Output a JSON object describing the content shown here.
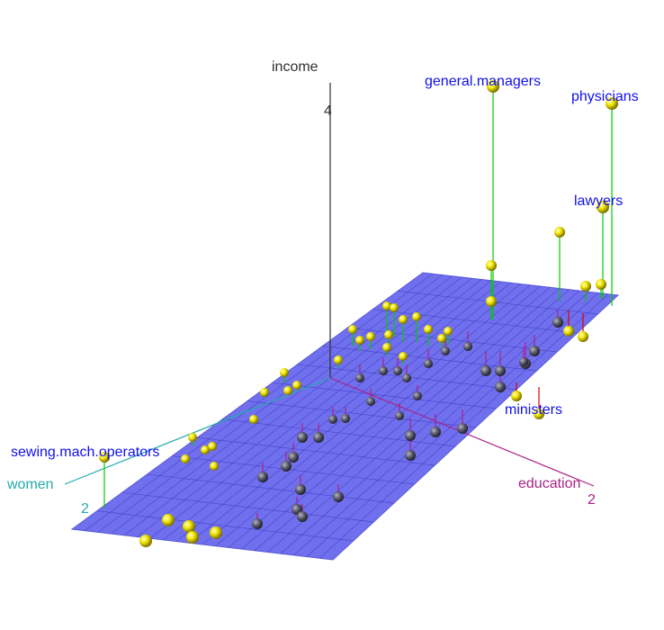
{
  "chart_data": {
    "type": "scatter",
    "subtype": "3d-scatter-with-regression-plane",
    "title": "",
    "axes": {
      "vertical": {
        "label": "income",
        "tick": "4",
        "color": "#303030"
      },
      "right": {
        "label": "education",
        "tick": "2",
        "color": "#aa2288"
      },
      "left": {
        "label": "women",
        "tick": "2",
        "color": "#22aaaa"
      }
    },
    "plane_color": "#6f6ff0",
    "point_color_above": "#ffff00",
    "point_color_below": "#555566",
    "residual_color_positive": "#00cc00",
    "residual_color_negative": "#aa2288",
    "labeled_points": [
      {
        "name": "general.managers",
        "education": 1.3,
        "women": -0.8,
        "income": 3.5
      },
      {
        "name": "physicians",
        "education": 1.6,
        "women": -0.6,
        "income": 3.2
      },
      {
        "name": "lawyers",
        "education": 1.6,
        "women": -0.9,
        "income": 2.5
      },
      {
        "name": "ministers",
        "education": 1.5,
        "women": -0.7,
        "income": -0.3
      },
      {
        "name": "sewing.mach.operators",
        "education": -1.4,
        "women": 2.0,
        "income": -0.6
      }
    ],
    "grid": true,
    "legend": "none"
  },
  "labels": {
    "income": "income",
    "income_tick": "4",
    "education": "education",
    "education_tick": "2",
    "women": "women",
    "women_tick": "2",
    "p1": "general.managers",
    "p2": "physicians",
    "p3": "lawyers",
    "p4": "ministers",
    "p5": "sewing.mach.operators"
  }
}
